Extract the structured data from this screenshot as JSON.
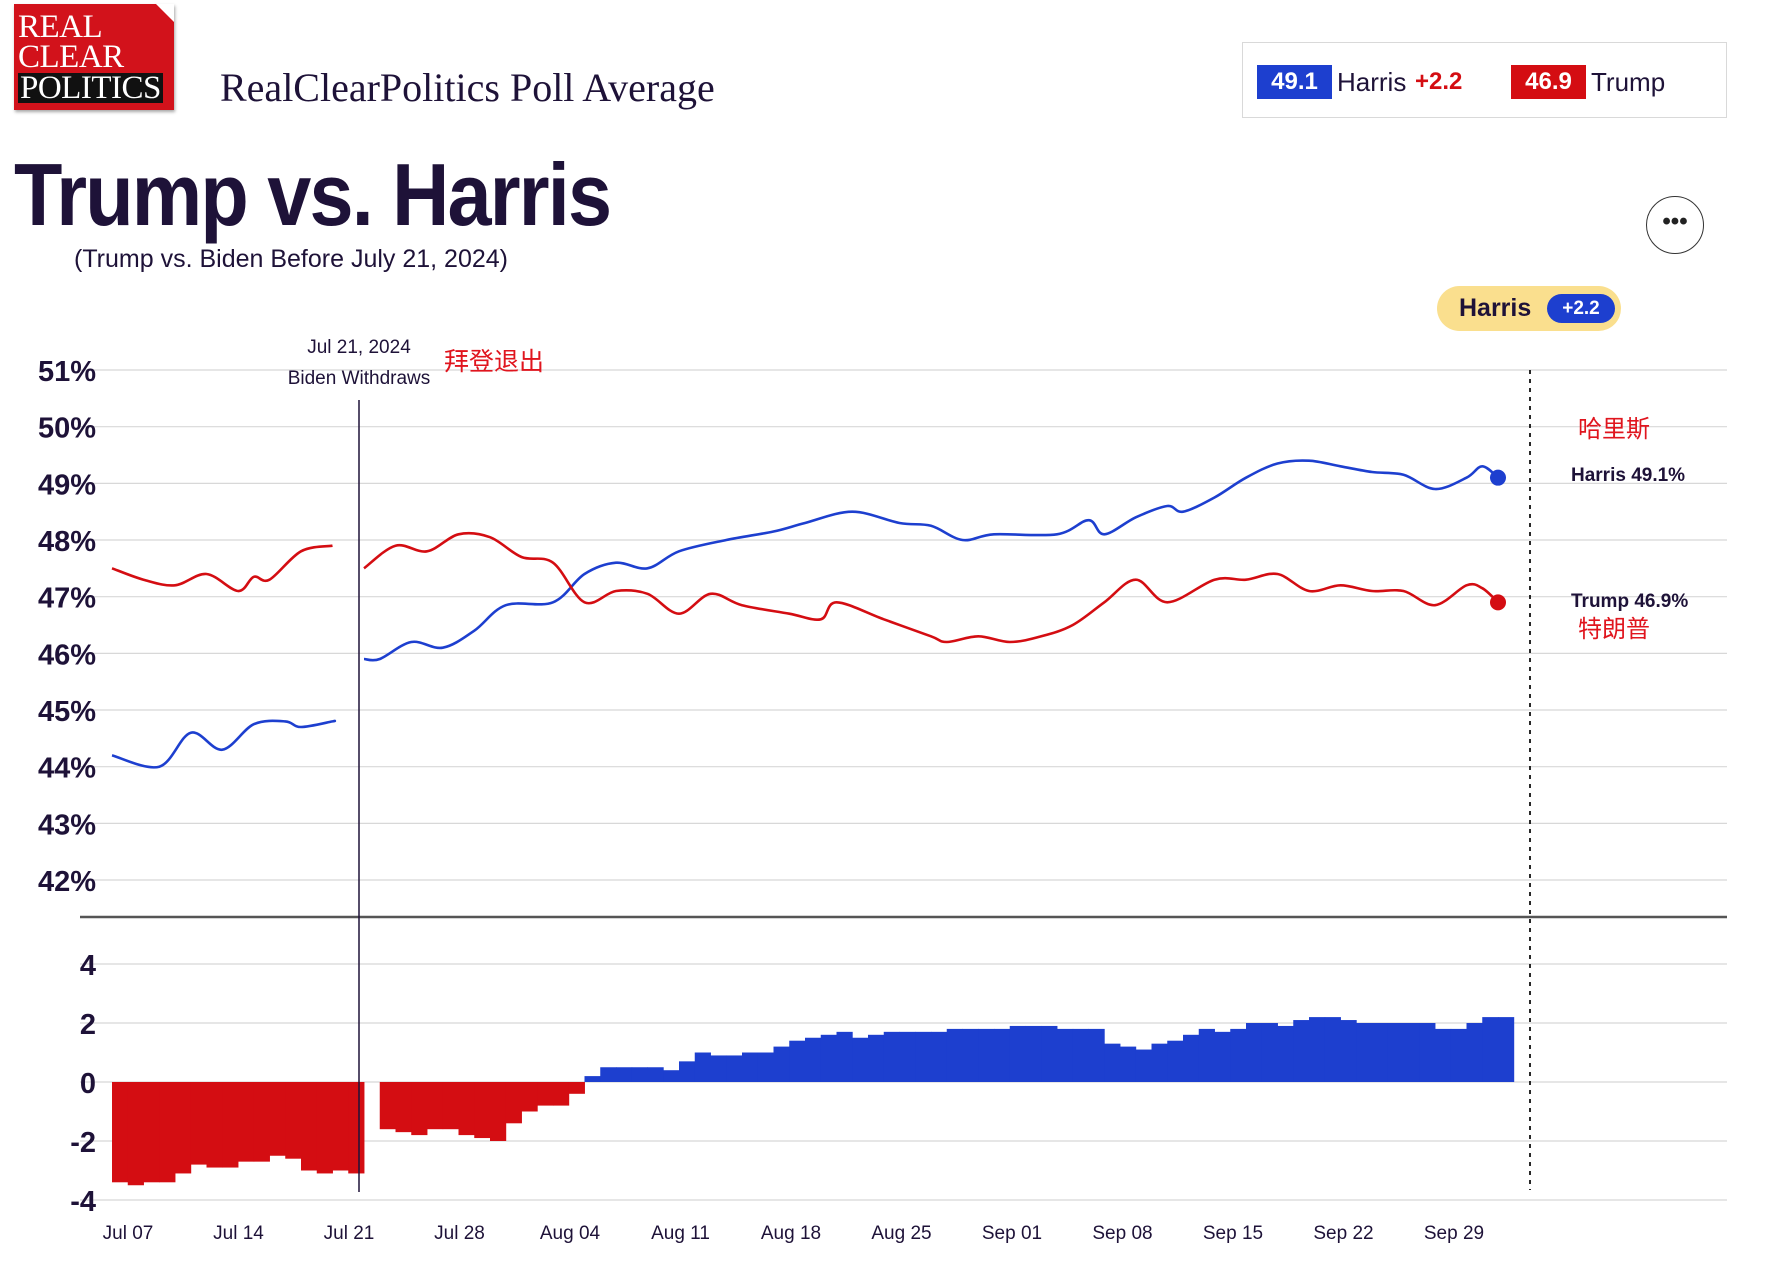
{
  "logo": {
    "lines": [
      "REAL",
      "CLEAR",
      "POLITICS"
    ]
  },
  "header": {
    "brand_title": "RealClearPolitics Poll Average",
    "title": "Trump vs. Harris",
    "subtitle": "(Trump vs. Biden Before July 21, 2024)",
    "more_icon": "more-horizontal-icon"
  },
  "scoreboard": {
    "harris": {
      "value": "49.1",
      "name": "Harris",
      "spread": "+2.2"
    },
    "trump": {
      "value": "46.9",
      "name": "Trump"
    }
  },
  "leader_badge": {
    "name": "Harris",
    "spread": "+2.2"
  },
  "colors": {
    "dem": "#1d3fcf",
    "rep": "#d40d12",
    "text": "#1e1238",
    "annotation_red": "#e0151e"
  },
  "chart_data": {
    "type": "line",
    "title": "Trump vs. Harris",
    "x_axis": {
      "start": "2024-07-07",
      "end": "2024-10-03",
      "ticks": [
        "Jul 07",
        "Jul 14",
        "Jul 21",
        "Jul 28",
        "Aug 04",
        "Aug 11",
        "Aug 18",
        "Aug 25",
        "Sep 01",
        "Sep 08",
        "Sep 15",
        "Sep 22",
        "Sep 29"
      ]
    },
    "ylim": [
      42,
      51
    ],
    "y_ticks": [
      "51%",
      "50%",
      "49%",
      "48%",
      "47%",
      "46%",
      "45%",
      "44%",
      "43%",
      "42%"
    ],
    "grid": true,
    "annotations": {
      "event_date": "Jul 21, 2024",
      "event_label": "Biden Withdraws",
      "event_label_cn": "拜登退出",
      "harris_cn": "哈里斯",
      "trump_cn": "特朗普"
    },
    "series": [
      {
        "name": "Harris",
        "end_label": "Harris 49.1%",
        "color": "#1d3fcf",
        "segments": [
          [
            [
              "2024-07-07",
              44.2
            ],
            [
              "2024-07-10",
              44.0
            ],
            [
              "2024-07-12",
              44.6
            ],
            [
              "2024-07-14",
              44.3
            ],
            [
              "2024-07-16",
              44.75
            ],
            [
              "2024-07-18",
              44.8
            ],
            [
              "2024-07-19",
              44.7
            ],
            [
              "2024-07-21",
              44.8
            ],
            [
              "2024-07-21",
              44.8
            ]
          ],
          [
            [
              "2024-07-23",
              45.9
            ],
            [
              "2024-07-24",
              45.9
            ],
            [
              "2024-07-26",
              46.2
            ],
            [
              "2024-07-28",
              46.1
            ],
            [
              "2024-07-30",
              46.4
            ],
            [
              "2024-08-01",
              46.85
            ],
            [
              "2024-08-04",
              46.9
            ],
            [
              "2024-08-06",
              47.4
            ],
            [
              "2024-08-08",
              47.6
            ],
            [
              "2024-08-10",
              47.5
            ],
            [
              "2024-08-12",
              47.8
            ],
            [
              "2024-08-15",
              48.0
            ],
            [
              "2024-08-18",
              48.15
            ],
            [
              "2024-08-20",
              48.3
            ],
            [
              "2024-08-23",
              48.5
            ],
            [
              "2024-08-26",
              48.3
            ],
            [
              "2024-08-28",
              48.25
            ],
            [
              "2024-08-30",
              48.0
            ],
            [
              "2024-09-01",
              48.1
            ],
            [
              "2024-09-05",
              48.1
            ],
            [
              "2024-09-07",
              48.35
            ],
            [
              "2024-09-08",
              48.1
            ],
            [
              "2024-09-10",
              48.4
            ],
            [
              "2024-09-12",
              48.6
            ],
            [
              "2024-09-13",
              48.5
            ],
            [
              "2024-09-15",
              48.75
            ],
            [
              "2024-09-17",
              49.1
            ],
            [
              "2024-09-19",
              49.35
            ],
            [
              "2024-09-21",
              49.4
            ],
            [
              "2024-09-23",
              49.3
            ],
            [
              "2024-09-25",
              49.2
            ],
            [
              "2024-09-27",
              49.15
            ],
            [
              "2024-09-29",
              48.9
            ],
            [
              "2024-10-01",
              49.1
            ],
            [
              "2024-10-02",
              49.3
            ],
            [
              "2024-10-03",
              49.1
            ]
          ]
        ]
      },
      {
        "name": "Trump",
        "end_label": "Trump 46.9%",
        "color": "#d40d12",
        "segments": [
          [
            [
              "2024-07-07",
              47.5
            ],
            [
              "2024-07-09",
              47.3
            ],
            [
              "2024-07-11",
              47.2
            ],
            [
              "2024-07-13",
              47.4
            ],
            [
              "2024-07-15",
              47.1
            ],
            [
              "2024-07-16",
              47.35
            ],
            [
              "2024-07-17",
              47.3
            ],
            [
              "2024-07-19",
              47.8
            ],
            [
              "2024-07-21",
              47.9
            ]
          ],
          [
            [
              "2024-07-23",
              47.5
            ],
            [
              "2024-07-25",
              47.9
            ],
            [
              "2024-07-27",
              47.8
            ],
            [
              "2024-07-29",
              48.1
            ],
            [
              "2024-07-31",
              48.05
            ],
            [
              "2024-08-02",
              47.7
            ],
            [
              "2024-08-04",
              47.6
            ],
            [
              "2024-08-06",
              46.9
            ],
            [
              "2024-08-08",
              47.1
            ],
            [
              "2024-08-10",
              47.05
            ],
            [
              "2024-08-12",
              46.7
            ],
            [
              "2024-08-14",
              47.05
            ],
            [
              "2024-08-16",
              46.85
            ],
            [
              "2024-08-19",
              46.7
            ],
            [
              "2024-08-21",
              46.6
            ],
            [
              "2024-08-22",
              46.9
            ],
            [
              "2024-08-25",
              46.6
            ],
            [
              "2024-08-28",
              46.3
            ],
            [
              "2024-08-29",
              46.2
            ],
            [
              "2024-08-31",
              46.3
            ],
            [
              "2024-09-02",
              46.2
            ],
            [
              "2024-09-04",
              46.3
            ],
            [
              "2024-09-06",
              46.5
            ],
            [
              "2024-09-08",
              46.9
            ],
            [
              "2024-09-10",
              47.3
            ],
            [
              "2024-09-12",
              46.9
            ],
            [
              "2024-09-15",
              47.3
            ],
            [
              "2024-09-17",
              47.3
            ],
            [
              "2024-09-19",
              47.4
            ],
            [
              "2024-09-21",
              47.1
            ],
            [
              "2024-09-23",
              47.2
            ],
            [
              "2024-09-25",
              47.1
            ],
            [
              "2024-09-27",
              47.1
            ],
            [
              "2024-09-29",
              46.85
            ],
            [
              "2024-10-01",
              47.2
            ],
            [
              "2024-10-02",
              47.15
            ],
            [
              "2024-10-03",
              46.9
            ]
          ]
        ]
      }
    ],
    "spread": {
      "type": "bar",
      "ylim": [
        -4,
        4
      ],
      "y_ticks": [
        "4",
        "2",
        "0",
        "-2",
        "-4"
      ],
      "values": [
        -3.4,
        -3.5,
        -3.4,
        -3.4,
        -3.1,
        -2.8,
        -2.9,
        -2.9,
        -2.7,
        -2.7,
        -2.5,
        -2.6,
        -3.0,
        -3.1,
        -3.0,
        -3.1,
        null,
        -1.6,
        -1.7,
        -1.8,
        -1.6,
        -1.6,
        -1.8,
        -1.9,
        -2.0,
        -1.4,
        -1.0,
        -0.8,
        -0.8,
        -0.4,
        0.2,
        0.5,
        0.5,
        0.5,
        0.5,
        0.4,
        0.7,
        1.0,
        0.9,
        0.9,
        1.0,
        1.0,
        1.2,
        1.4,
        1.5,
        1.6,
        1.7,
        1.5,
        1.6,
        1.7,
        1.7,
        1.7,
        1.7,
        1.8,
        1.8,
        1.8,
        1.8,
        1.9,
        1.9,
        1.9,
        1.8,
        1.8,
        1.8,
        1.3,
        1.2,
        1.1,
        1.3,
        1.4,
        1.6,
        1.8,
        1.7,
        1.8,
        2.0,
        2.0,
        1.9,
        2.1,
        2.2,
        2.2,
        2.1,
        2.0,
        2.0,
        2.0,
        2.0,
        2.0,
        1.8,
        1.8,
        2.0,
        2.2,
        2.2
      ]
    }
  }
}
